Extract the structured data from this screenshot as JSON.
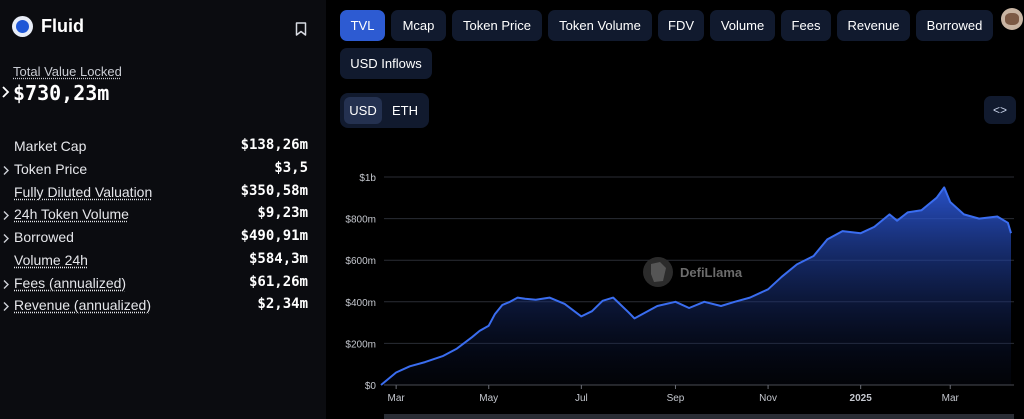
{
  "protocol": {
    "name": "Fluid"
  },
  "tvl": {
    "label": "Total Value Locked",
    "value": "$730,23m"
  },
  "metrics": [
    {
      "label": "Market Cap",
      "value": "$138,26m",
      "caret": false,
      "underline": false
    },
    {
      "label": "Token Price",
      "value": "$3,5",
      "caret": true,
      "underline": false
    },
    {
      "label": "Fully Diluted Valuation",
      "value": "$350,58m",
      "caret": false,
      "underline": true
    },
    {
      "label": "24h Token Volume",
      "value": "$9,23m",
      "caret": true,
      "underline": true
    },
    {
      "label": "Borrowed",
      "value": "$490,91m",
      "caret": true,
      "underline": false
    },
    {
      "label": "Volume 24h",
      "value": "$584,3m",
      "caret": false,
      "underline": true
    },
    {
      "label": "Fees (annualized)",
      "value": "$61,26m",
      "caret": true,
      "underline": true
    },
    {
      "label": "Revenue (annualized)",
      "value": "$2,34m",
      "caret": true,
      "underline": true
    }
  ],
  "tabs": [
    "TVL",
    "Mcap",
    "Token Price",
    "Token Volume",
    "FDV",
    "Volume",
    "Fees",
    "Revenue",
    "Borrowed",
    "USD Inflows"
  ],
  "active_tab": "TVL",
  "currency": {
    "options": [
      "USD",
      "ETH"
    ],
    "selected": "USD"
  },
  "embed": {
    "label": "<>"
  },
  "watermark": "DefiLlama",
  "colors": {
    "accent": "#2d5bd2",
    "line": "#3a6df0",
    "panel": "#0b0c10",
    "tab_bg": "#111a2e"
  },
  "icons": {
    "logo": "fluid-logo",
    "bookmark": "bookmark-icon",
    "caret": "chevron-right-icon"
  },
  "chart_data": {
    "type": "area",
    "title": "",
    "xlabel": "",
    "ylabel": "",
    "y_ticks": [
      "$0",
      "$200m",
      "$400m",
      "$600m",
      "$800m",
      "$1b"
    ],
    "x_ticks": [
      "Mar",
      "May",
      "Jul",
      "Sep",
      "Nov",
      "2025",
      "Mar"
    ],
    "ylim": [
      0,
      1000
    ],
    "grid": true,
    "series": [
      {
        "x": [
          "2024-02-20",
          "2024-03-01",
          "2024-03-10",
          "2024-03-20",
          "2024-04-01",
          "2024-04-10",
          "2024-04-20",
          "2024-04-25",
          "2024-05-01",
          "2024-05-05",
          "2024-05-10",
          "2024-05-15",
          "2024-05-20",
          "2024-05-25",
          "2024-06-01",
          "2024-06-10",
          "2024-06-20",
          "2024-07-01",
          "2024-07-08",
          "2024-07-15",
          "2024-07-22",
          "2024-08-01",
          "2024-08-05",
          "2024-08-10",
          "2024-08-20",
          "2024-09-01",
          "2024-09-10",
          "2024-09-20",
          "2024-10-01",
          "2024-10-10",
          "2024-10-20",
          "2024-11-01",
          "2024-11-10",
          "2024-11-20",
          "2024-12-01",
          "2024-12-10",
          "2024-12-20",
          "2025-01-01",
          "2025-01-10",
          "2025-01-20",
          "2025-01-25",
          "2025-02-01",
          "2025-02-10",
          "2025-02-15",
          "2025-02-20",
          "2025-02-25",
          "2025-03-01",
          "2025-03-10",
          "2025-03-20",
          "2025-04-01",
          "2025-04-08",
          "2025-04-10"
        ],
        "values": [
          0,
          60,
          90,
          110,
          140,
          175,
          230,
          260,
          285,
          340,
          385,
          400,
          420,
          415,
          410,
          420,
          390,
          330,
          355,
          405,
          420,
          350,
          320,
          340,
          380,
          400,
          370,
          400,
          380,
          400,
          420,
          460,
          520,
          580,
          620,
          700,
          740,
          730,
          760,
          820,
          790,
          830,
          840,
          870,
          900,
          950,
          880,
          820,
          800,
          810,
          780,
          730
        ]
      }
    ]
  }
}
